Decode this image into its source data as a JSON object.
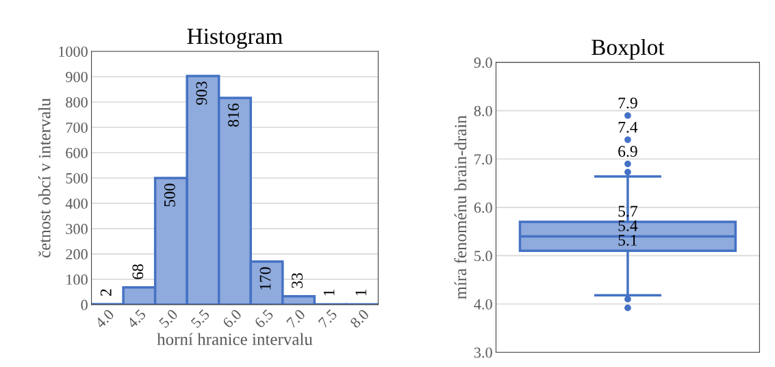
{
  "chart_data": [
    {
      "type": "bar",
      "title": "Histogram",
      "xlabel": "horní hranice intervalu",
      "ylabel": "četnost obcí v intervalu",
      "categories": [
        "4.0",
        "4.5",
        "5.0",
        "5.5",
        "6.0",
        "6.5",
        "7.0",
        "7.5",
        "8.0"
      ],
      "values": [
        2,
        68,
        500,
        903,
        816,
        170,
        33,
        1,
        1
      ],
      "color": "#8faadc",
      "ylim": [
        0,
        1000
      ],
      "yticks": [
        0,
        100,
        200,
        300,
        400,
        500,
        600,
        700,
        800,
        900,
        1000
      ],
      "grid": "y",
      "data_labels": true
    },
    {
      "type": "box",
      "title": "Boxplot",
      "ylabel": "míra fenoménu brain-drain",
      "categories": [
        null
      ],
      "color": "#8faadc",
      "boxes": [
        {
          "low": 4.18,
          "q1": 5.1,
          "median": 5.4,
          "q3": 5.7,
          "high": 6.64,
          "outliers": [
            3.92,
            4.1,
            6.73,
            6.9,
            7.4,
            7.9
          ]
        }
      ],
      "ylim": [
        3.0,
        9.0
      ],
      "yticks": [
        {
          "value": 3,
          "label": "3.0"
        },
        {
          "value": 4,
          "label": "4.0"
        },
        {
          "value": 5,
          "label": "5.0"
        },
        {
          "value": 6,
          "label": "6.0"
        },
        {
          "value": 7,
          "label": "7.0"
        },
        {
          "value": 8,
          "label": "8.0"
        },
        {
          "value": 9,
          "label": "9.0"
        }
      ],
      "grid": "y",
      "tick_labels": "y",
      "annotations": [
        "7.9",
        "7.4",
        "6.9",
        {
          "text": "5.7",
          "y": 5.7
        },
        {
          "text": "5.4",
          "y": 5.4
        },
        {
          "text": "5.1",
          "y": 5.1
        }
      ]
    }
  ]
}
